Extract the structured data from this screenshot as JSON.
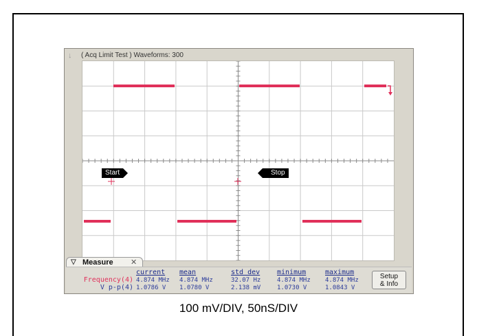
{
  "status": {
    "text": "( Acq Limit Test )  Waveforms: 300"
  },
  "markers": {
    "start": "Start",
    "stop": "Stop"
  },
  "measure": {
    "tab_label": "Measure",
    "headers": [
      "current",
      "mean",
      "std dev",
      "minimum",
      "maximum"
    ],
    "rows": [
      {
        "label": "Frequency(4)",
        "values": [
          "4.874 MHz",
          "4.874 MHz",
          "32.07 Hz",
          "4.874 MHz",
          "4.874 MHz"
        ]
      },
      {
        "label": "V p-p(4)",
        "values": [
          "1.0786 V",
          "1.0780 V",
          "2.138 mV",
          "1.0730 V",
          "1.0843 V"
        ]
      }
    ],
    "setup_line1": "Setup",
    "setup_line2": "& Info"
  },
  "caption": "100 mV/DIV, 50nS/DIV",
  "colors": {
    "trace": "#e0305a",
    "label_red": "#e0305a",
    "value_blue": "#2a3a9a"
  }
}
